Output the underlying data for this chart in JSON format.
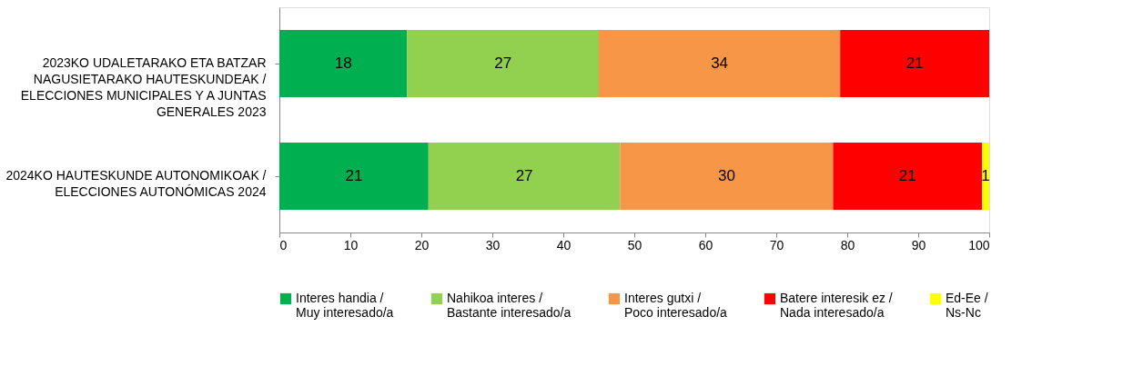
{
  "chart_data": {
    "type": "bar",
    "orientation": "horizontal",
    "stacked": true,
    "data_labels": true,
    "grid": false,
    "legend": "bottom",
    "categories": [
      "2023KO UDALETARAKO ETA BATZAR NAGUSIETARAKO HAUTESKUNDEAK / ELECCIONES MUNICIPALES Y A JUNTAS GENERALES 2023",
      "2024KO HAUTESKUNDE AUTONOMIKOAK / ELECCIONES AUTONÓMICAS 2024"
    ],
    "xlim": [
      0,
      100
    ],
    "xticks": [
      0,
      10,
      20,
      30,
      40,
      50,
      60,
      70,
      80,
      90,
      100
    ],
    "series": [
      {
        "name": "Interes handia / Muy interesado/a",
        "color": "#00b050",
        "values": [
          18,
          21
        ]
      },
      {
        "name": "Nahikoa interes / Bastante interesado/a",
        "color": "#92d050",
        "values": [
          27,
          27
        ]
      },
      {
        "name": "Interes gutxi / Poco interesado/a",
        "color": "#f79646",
        "values": [
          34,
          30
        ]
      },
      {
        "name": "Batere interesik ez / Nada interesado/a",
        "color": "#ff0000",
        "values": [
          21,
          21
        ]
      },
      {
        "name": "Ed-Ee / Ns-Nc",
        "color": "#ffff00",
        "values": [
          null,
          1
        ]
      }
    ]
  }
}
